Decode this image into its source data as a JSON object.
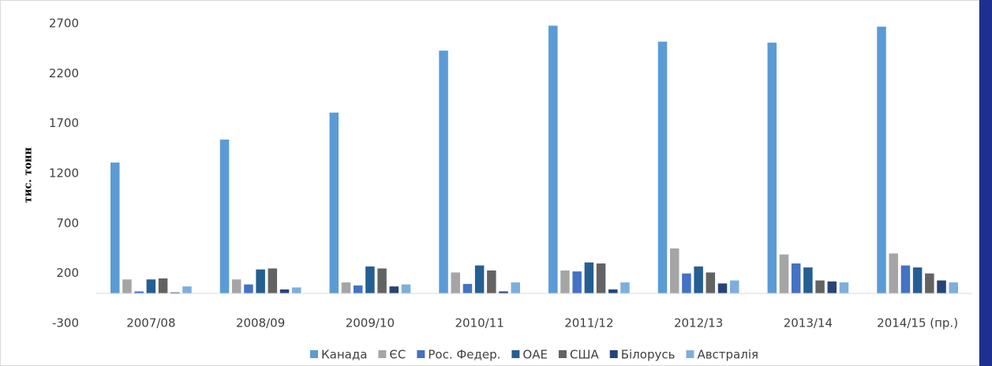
{
  "chart_data": {
    "type": "bar",
    "y_label": "тис. тонн",
    "categories": [
      "2007/08",
      "2008/09",
      "2009/10",
      "2010/11",
      "2011/12",
      "2012/13",
      "2013/14",
      "2014/15 (пр.)"
    ],
    "series": [
      {
        "name": "Канада",
        "color": "#5b9bd5",
        "values": [
          1310,
          1540,
          1810,
          2430,
          2680,
          2520,
          2510,
          2670
        ]
      },
      {
        "name": "ЄС",
        "color": "#a5a5a5",
        "values": [
          140,
          140,
          110,
          210,
          230,
          450,
          390,
          400
        ]
      },
      {
        "name": "Рос. Федер.",
        "color": "#4472c4",
        "values": [
          20,
          90,
          80,
          95,
          220,
          200,
          300,
          280
        ]
      },
      {
        "name": "ОАЕ",
        "color": "#255e91",
        "values": [
          140,
          240,
          270,
          280,
          310,
          270,
          260,
          260
        ]
      },
      {
        "name": "США",
        "color": "#636363",
        "values": [
          150,
          250,
          250,
          230,
          300,
          210,
          130,
          200
        ]
      },
      {
        "name": "Білорусь",
        "color": "#264478",
        "values": [
          10,
          40,
          70,
          20,
          40,
          100,
          120,
          130
        ]
      },
      {
        "name": "Австралія",
        "color": "#7cafdd",
        "values": [
          70,
          60,
          90,
          110,
          110,
          130,
          110,
          110
        ]
      }
    ],
    "ylim": [
      -300,
      2700
    ],
    "yticks": [
      -300,
      200,
      700,
      1200,
      1700,
      2200,
      2700
    ],
    "grid": false,
    "legend": "bottom"
  }
}
